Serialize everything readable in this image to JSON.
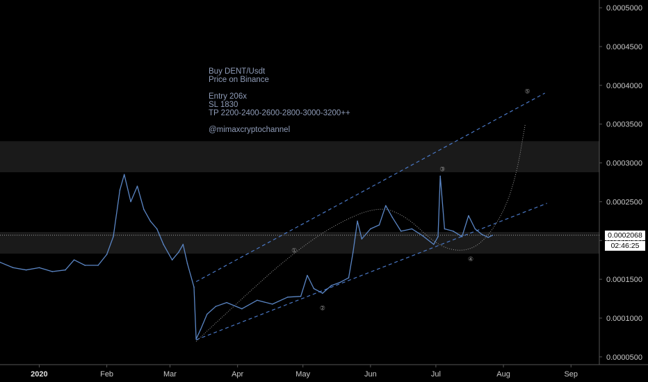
{
  "chart_data": {
    "type": "line",
    "title": "",
    "ylim": [
      4e-05,
      0.00051
    ],
    "y_ticks": [
      "0.0005000",
      "0.0004500",
      "0.0004000",
      "0.0003500",
      "0.0003000",
      "0.0002500",
      "0.0002000",
      "0.0001500",
      "0.0001000",
      "0.0000500"
    ],
    "x_ticks": [
      {
        "label": "2020",
        "date": "2020-01-01",
        "bold": true
      },
      {
        "label": "Feb",
        "date": "2020-02-01"
      },
      {
        "label": "Mar",
        "date": "2020-03-01"
      },
      {
        "label": "Apr",
        "date": "2020-04-01"
      },
      {
        "label": "May",
        "date": "2020-05-01"
      },
      {
        "label": "Jun",
        "date": "2020-06-01"
      },
      {
        "label": "Jul",
        "date": "2020-07-01"
      },
      {
        "label": "Aug",
        "date": "2020-08-01"
      },
      {
        "label": "Sep",
        "date": "2020-09-01"
      }
    ],
    "xlim": [
      "2019-12-14",
      "2020-09-14"
    ],
    "price_series": {
      "color": "#5b86c5",
      "points": [
        [
          "2019-12-14",
          0.000172
        ],
        [
          "2019-12-20",
          0.000165
        ],
        [
          "2019-12-26",
          0.000162
        ],
        [
          "2020-01-01",
          0.000165
        ],
        [
          "2020-01-07",
          0.00016
        ],
        [
          "2020-01-13",
          0.000162
        ],
        [
          "2020-01-17",
          0.000175
        ],
        [
          "2020-01-22",
          0.000168
        ],
        [
          "2020-01-28",
          0.000168
        ],
        [
          "2020-02-01",
          0.000182
        ],
        [
          "2020-02-04",
          0.000205
        ],
        [
          "2020-02-07",
          0.000265
        ],
        [
          "2020-02-09",
          0.000285
        ],
        [
          "2020-02-12",
          0.00025
        ],
        [
          "2020-02-15",
          0.00027
        ],
        [
          "2020-02-18",
          0.00024
        ],
        [
          "2020-02-21",
          0.000225
        ],
        [
          "2020-02-24",
          0.000215
        ],
        [
          "2020-02-27",
          0.000195
        ],
        [
          "2020-03-02",
          0.000175
        ],
        [
          "2020-03-05",
          0.000185
        ],
        [
          "2020-03-07",
          0.000195
        ],
        [
          "2020-03-09",
          0.00017
        ],
        [
          "2020-03-12",
          0.00014
        ],
        [
          "2020-03-13",
          7.3e-05
        ],
        [
          "2020-03-15",
          8.5e-05
        ],
        [
          "2020-03-18",
          0.000105
        ],
        [
          "2020-03-22",
          0.000115
        ],
        [
          "2020-03-27",
          0.00012
        ],
        [
          "2020-04-03",
          0.000112
        ],
        [
          "2020-04-10",
          0.000123
        ],
        [
          "2020-04-17",
          0.000118
        ],
        [
          "2020-04-24",
          0.000127
        ],
        [
          "2020-04-30",
          0.000128
        ],
        [
          "2020-05-03",
          0.000155
        ],
        [
          "2020-05-06",
          0.000138
        ],
        [
          "2020-05-10",
          0.000132
        ],
        [
          "2020-05-14",
          0.000142
        ],
        [
          "2020-05-18",
          0.000146
        ],
        [
          "2020-05-22",
          0.000152
        ],
        [
          "2020-05-24",
          0.000185
        ],
        [
          "2020-05-26",
          0.000225
        ],
        [
          "2020-05-28",
          0.000202
        ],
        [
          "2020-06-01",
          0.000215
        ],
        [
          "2020-06-05",
          0.00022
        ],
        [
          "2020-06-08",
          0.000245
        ],
        [
          "2020-06-11",
          0.00023
        ],
        [
          "2020-06-15",
          0.000212
        ],
        [
          "2020-06-20",
          0.000215
        ],
        [
          "2020-06-25",
          0.000206
        ],
        [
          "2020-06-30",
          0.000195
        ],
        [
          "2020-07-02",
          0.000205
        ],
        [
          "2020-07-03",
          0.000283
        ],
        [
          "2020-07-05",
          0.000215
        ],
        [
          "2020-07-09",
          0.000212
        ],
        [
          "2020-07-13",
          0.000205
        ],
        [
          "2020-07-16",
          0.000232
        ],
        [
          "2020-07-19",
          0.000215
        ],
        [
          "2020-07-22",
          0.000208
        ],
        [
          "2020-07-25",
          0.000204
        ],
        [
          "2020-07-27",
          0.0002068
        ]
      ]
    },
    "channel_upper": [
      [
        "2020-03-13",
        0.000147
      ],
      [
        "2020-08-20",
        0.00039
      ]
    ],
    "channel_lower": [
      [
        "2020-03-13",
        7.2e-05
      ],
      [
        "2020-08-21",
        0.000248
      ]
    ],
    "dotted_path": [
      [
        "2020-03-13",
        7e-05
      ],
      [
        "2020-04-03",
        0.000125
      ],
      [
        "2020-04-24",
        0.000178
      ],
      [
        "2020-05-15",
        0.00022
      ],
      [
        "2020-06-05",
        0.000245
      ],
      [
        "2020-06-18",
        0.00023
      ],
      [
        "2020-07-01",
        0.000195
      ],
      [
        "2020-07-12",
        0.000185
      ],
      [
        "2020-07-22",
        0.000195
      ],
      [
        "2020-08-01",
        0.000235
      ],
      [
        "2020-08-07",
        0.000285
      ],
      [
        "2020-08-11",
        0.00035
      ]
    ],
    "wave_labels": [
      {
        "label": "①",
        "date": "2020-04-27",
        "value": 0.000188
      },
      {
        "label": "②",
        "date": "2020-05-10",
        "value": 0.000114
      },
      {
        "label": "③",
        "date": "2020-07-04",
        "value": 0.000293
      },
      {
        "label": "④",
        "date": "2020-07-17",
        "value": 0.000177
      },
      {
        "label": "⑤",
        "date": "2020-08-12",
        "value": 0.000393
      }
    ],
    "zones": [
      {
        "from": 0.000288,
        "to": 0.000328,
        "color": "#1a1a1a"
      },
      {
        "from": 0.000183,
        "to": 0.000211,
        "color": "#1a1a1a"
      }
    ],
    "last_price": {
      "value": 0.0002068,
      "label": "0.0002068",
      "countdown": "02:46:25",
      "bg": "#ffffff",
      "fg": "#000000"
    }
  },
  "note": {
    "lines": [
      "Buy DENT/Usdt",
      "Price on Binance",
      "",
      "Entry 206x",
      "SL 1830",
      "TP 2200-2400-2600-2800-3000-3200++",
      "",
      "@mimaxcryptochannel"
    ]
  },
  "colors": {
    "background": "#000000",
    "axis_line": "#555555",
    "channel": "#4a78c6",
    "dotted": "#9a9a9a",
    "price": "#5b86c5"
  }
}
